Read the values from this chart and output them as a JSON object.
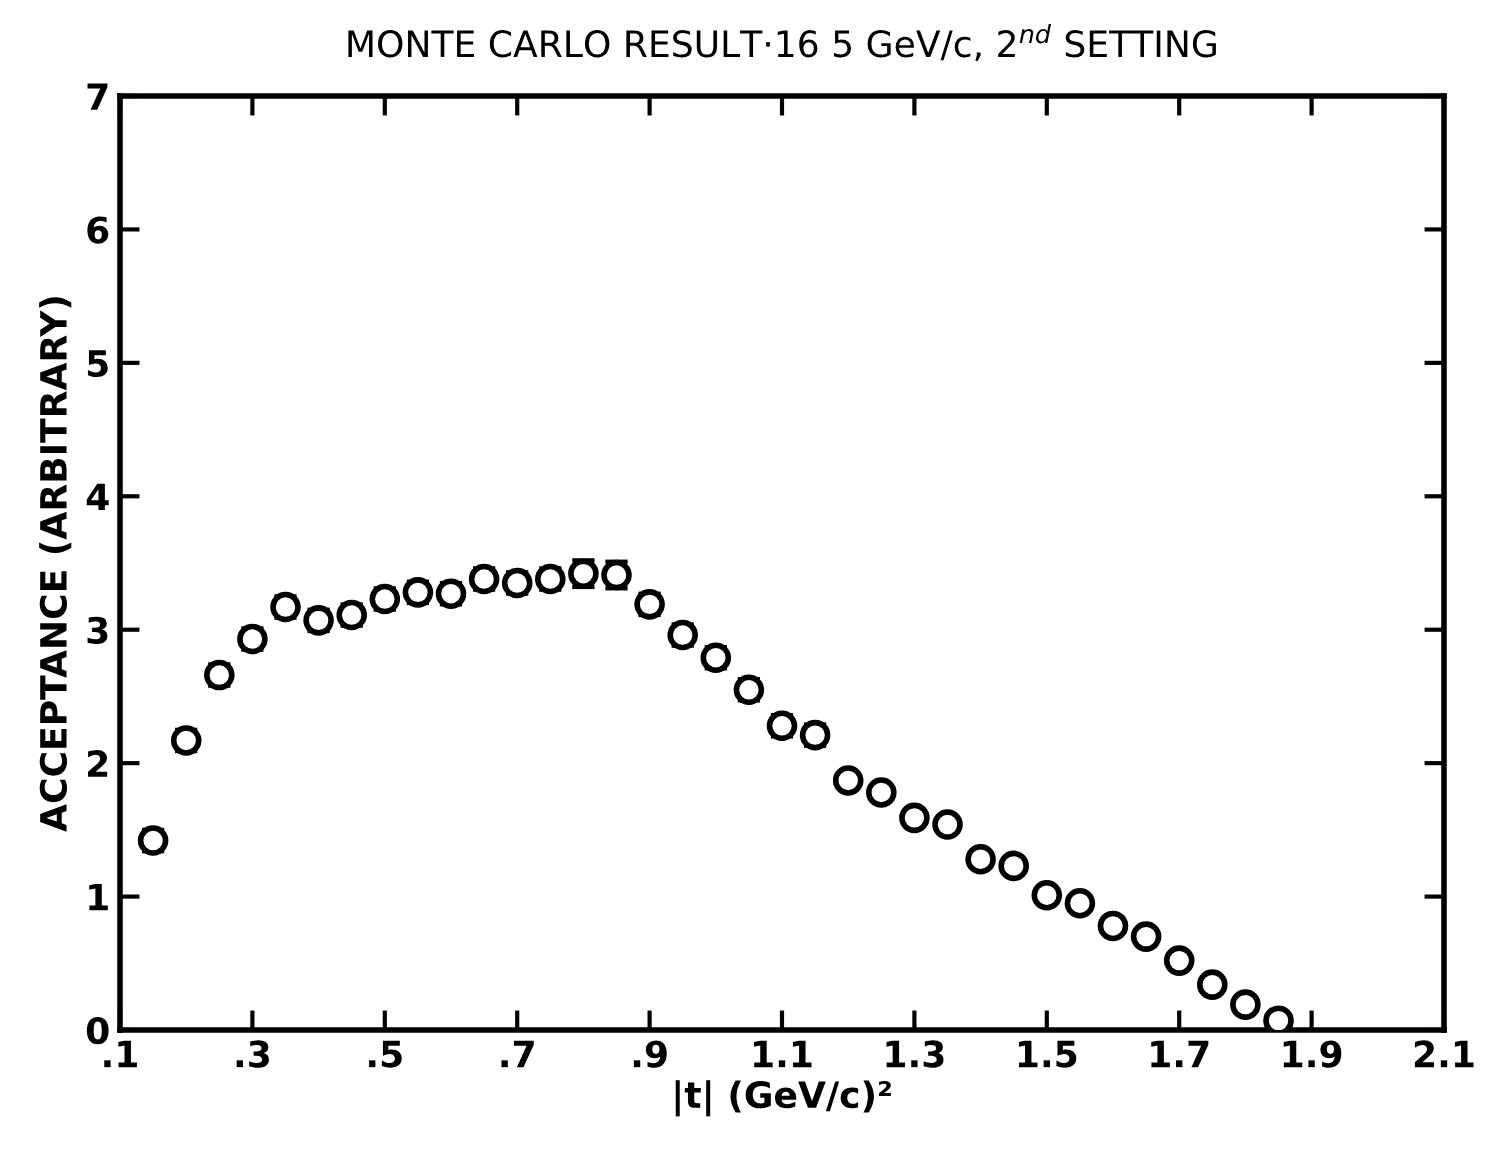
{
  "chart_data": {
    "type": "scatter",
    "title": "MONTE CARLO RESULT·16 5 GeV/c, 2$^{nd}$ SETTING",
    "xlabel": "|t| (GeV/c)²",
    "ylabel": "ACCEPTANCE (ARBITRARY)",
    "x": [
      0.15,
      0.2,
      0.25,
      0.3,
      0.35,
      0.4,
      0.45,
      0.5,
      0.55,
      0.6,
      0.65,
      0.7,
      0.75,
      0.8,
      0.85,
      0.9,
      0.95,
      1.0,
      1.05,
      1.1,
      1.15,
      1.2,
      1.25,
      1.3,
      1.35,
      1.4,
      1.45,
      1.5,
      1.55,
      1.6,
      1.65,
      1.7,
      1.75,
      1.8,
      1.85
    ],
    "series": [
      {
        "color": "#000000",
        "values": [
          1.42,
          2.17,
          2.66,
          2.93,
          3.17,
          3.07,
          3.11,
          3.23,
          3.28,
          3.27,
          3.38,
          3.35,
          3.38,
          3.42,
          3.41,
          3.19,
          2.96,
          2.79,
          2.55,
          2.28,
          2.21,
          1.87,
          1.78,
          1.59,
          1.54,
          1.28,
          1.23,
          1.01,
          0.95,
          0.78,
          0.7,
          0.52,
          0.34,
          0.19,
          0.07
        ],
        "errors": [
          0.08,
          0.08,
          0.08,
          0.08,
          0.08,
          0.08,
          0.08,
          0.08,
          0.08,
          0.08,
          0.08,
          0.08,
          0.08,
          0.1,
          0.1,
          0.08,
          0.08,
          0.08,
          0.08,
          0.08,
          0.08,
          0.05,
          null,
          null,
          null,
          null,
          null,
          null,
          null,
          null,
          null,
          null,
          null,
          null,
          null
        ]
      }
    ],
    "xlim": [
      0.1,
      2.1
    ],
    "xticks": [
      {
        "value": 0.1,
        "label": ".1"
      },
      {
        "value": 0.3,
        "label": ".3"
      },
      {
        "value": 0.5,
        "label": ".5"
      },
      {
        "value": 0.7,
        "label": ".7"
      },
      {
        "value": 0.9,
        "label": ".9"
      },
      1.1,
      1.3,
      1.5,
      1.7,
      1.9,
      2.1
    ],
    "ylim": [
      0,
      7
    ],
    "yticks": [
      0,
      1,
      2,
      3,
      4,
      5,
      6,
      7
    ],
    "marker": "circle",
    "grid": false
  }
}
